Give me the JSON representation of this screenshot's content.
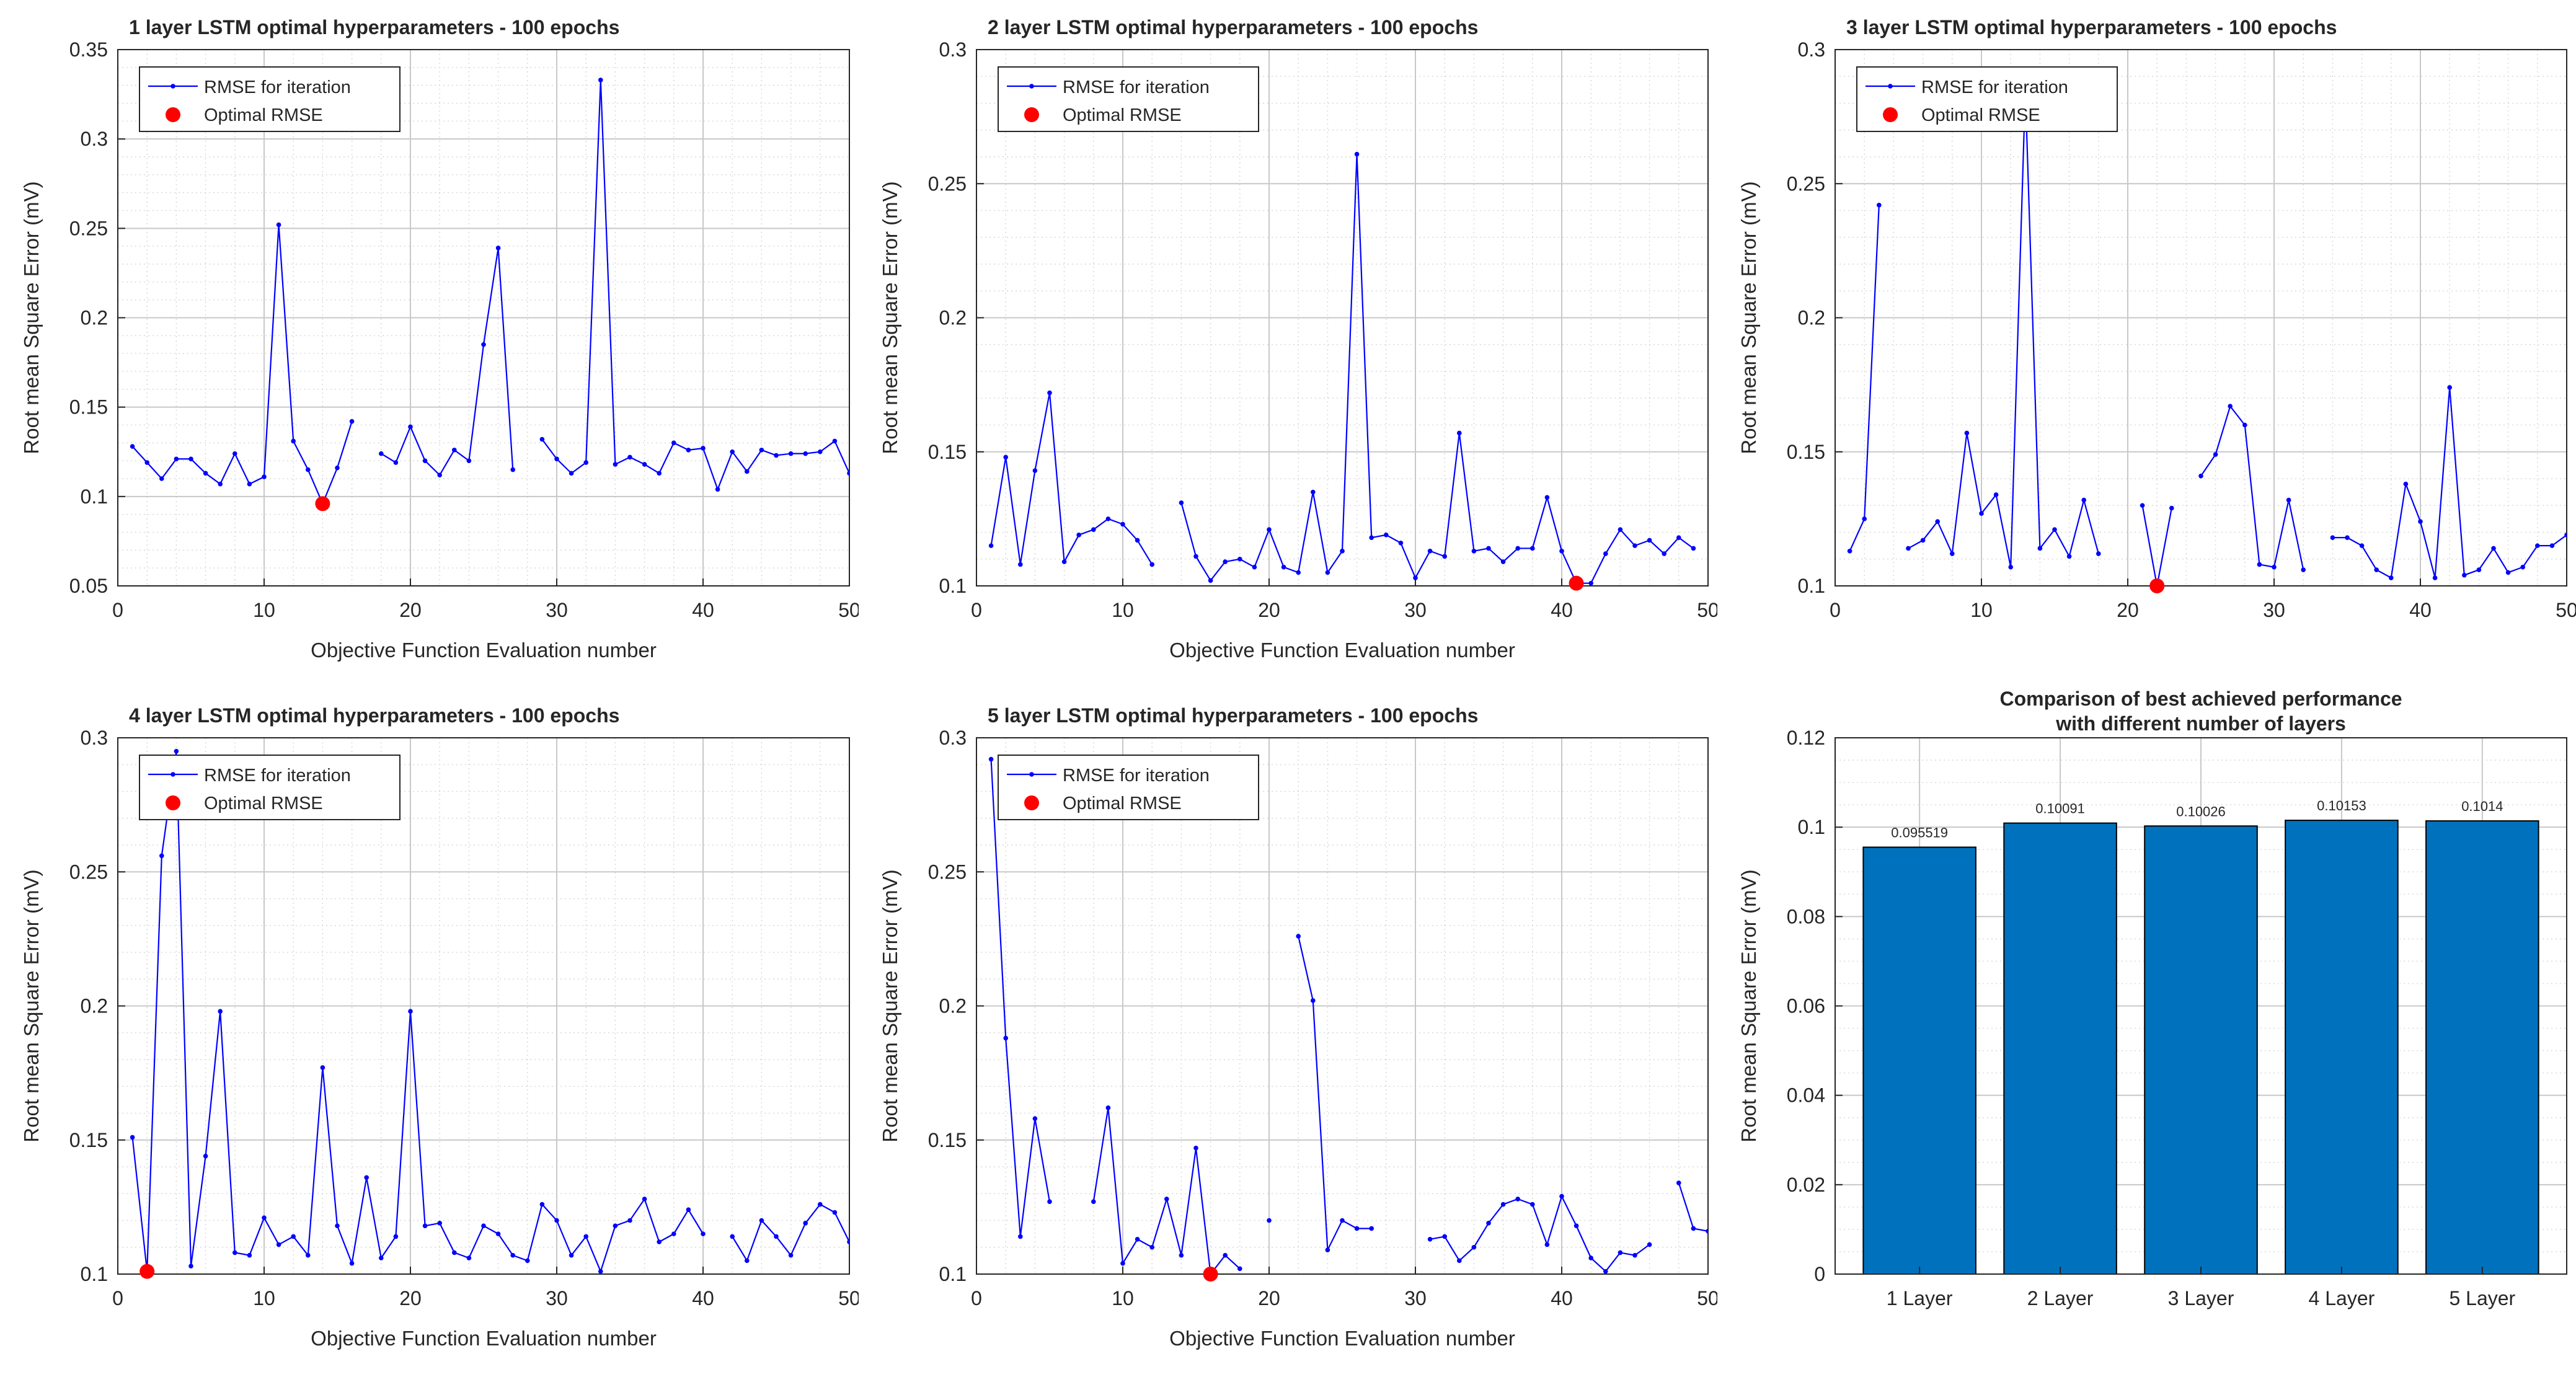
{
  "chart_data": [
    {
      "type": "line",
      "title": "1 layer LSTM optimal hyperparameters - 100 epochs",
      "xlabel": "Objective Function Evaluation number",
      "ylabel": "Root mean Square Error (mV)",
      "xlim": [
        0,
        50
      ],
      "ylim": [
        0.05,
        0.35
      ],
      "xticks": [
        0,
        10,
        20,
        30,
        40,
        50
      ],
      "xtick_labels": [
        "0",
        "10",
        "20",
        "30",
        "40",
        "50"
      ],
      "yticks": [
        0.05,
        0.1,
        0.15,
        0.2,
        0.25,
        0.3,
        0.35
      ],
      "ytick_labels": [
        "0.05",
        "0.1",
        "0.15",
        "0.2",
        "0.25",
        "0.3",
        "0.35"
      ],
      "grid": true,
      "legend": [
        "RMSE for iteration",
        "Optimal RMSE"
      ],
      "series": [
        {
          "name": "RMSE for iteration",
          "color": "#0000FF",
          "x": [
            1,
            2,
            3,
            4,
            5,
            6,
            7,
            8,
            9,
            10,
            11,
            12,
            13,
            14,
            15,
            16,
            17,
            18,
            19,
            20,
            21,
            22,
            23,
            24,
            25,
            26,
            27,
            28,
            29,
            30,
            31,
            32,
            33,
            34,
            35,
            36,
            37,
            38,
            39,
            40,
            41,
            42,
            43,
            44,
            45,
            46,
            47,
            48,
            49,
            50
          ],
          "y": [
            0.128,
            0.119,
            0.11,
            0.121,
            0.121,
            0.113,
            0.107,
            0.124,
            0.107,
            0.111,
            0.252,
            0.131,
            0.115,
            0.096,
            0.116,
            0.142,
            null,
            0.124,
            0.119,
            0.139,
            0.12,
            0.112,
            0.126,
            0.12,
            0.185,
            0.239,
            0.115,
            null,
            0.132,
            0.121,
            0.113,
            0.119,
            0.333,
            0.118,
            0.122,
            0.118,
            0.113,
            0.13,
            0.126,
            0.127,
            0.104,
            0.125,
            0.114,
            0.126,
            0.123,
            0.124,
            0.124,
            0.125,
            0.131,
            0.113
          ]
        }
      ],
      "optimal": {
        "name": "Optimal RMSE",
        "color": "#FF0000",
        "x": 14,
        "y": 0.096
      }
    },
    {
      "type": "line",
      "title": "2 layer LSTM optimal hyperparameters - 100 epochs",
      "xlabel": "Objective Function Evaluation number",
      "ylabel": "Root mean Square Error (mV)",
      "xlim": [
        0,
        50
      ],
      "ylim": [
        0.1,
        0.3
      ],
      "xticks": [
        0,
        10,
        20,
        30,
        40,
        50
      ],
      "xtick_labels": [
        "0",
        "10",
        "20",
        "30",
        "40",
        "50"
      ],
      "yticks": [
        0.1,
        0.15,
        0.2,
        0.25,
        0.3
      ],
      "ytick_labels": [
        "0.1",
        "0.15",
        "0.2",
        "0.25",
        "0.3"
      ],
      "grid": true,
      "legend": [
        "RMSE for iteration",
        "Optimal RMSE"
      ],
      "series": [
        {
          "name": "RMSE for iteration",
          "color": "#0000FF",
          "x": [
            1,
            2,
            3,
            4,
            5,
            6,
            7,
            8,
            9,
            10,
            11,
            12,
            13,
            14,
            15,
            16,
            17,
            18,
            19,
            20,
            21,
            22,
            23,
            24,
            25,
            26,
            27,
            28,
            29,
            30,
            31,
            32,
            33,
            34,
            35,
            36,
            37,
            38,
            39,
            40,
            41,
            42,
            43,
            44,
            45,
            46,
            47,
            48,
            49
          ],
          "y": [
            0.115,
            0.148,
            0.108,
            0.143,
            0.172,
            0.109,
            0.119,
            0.121,
            0.125,
            0.123,
            0.117,
            0.108,
            null,
            0.131,
            0.111,
            0.102,
            0.109,
            0.11,
            0.107,
            0.121,
            0.107,
            0.105,
            0.135,
            0.105,
            0.113,
            0.261,
            0.118,
            0.119,
            0.116,
            0.103,
            0.113,
            0.111,
            0.157,
            0.113,
            0.114,
            0.109,
            0.114,
            0.114,
            0.133,
            0.113,
            0.101,
            0.101,
            0.112,
            0.121,
            0.115,
            0.117,
            0.112,
            0.118,
            0.114
          ]
        }
      ],
      "optimal": {
        "name": "Optimal RMSE",
        "color": "#FF0000",
        "x": 41,
        "y": 0.101
      }
    },
    {
      "type": "line",
      "title": "3 layer LSTM optimal hyperparameters - 100 epochs",
      "xlabel": "",
      "ylabel": "Root mean Square Error (mV)",
      "xlim": [
        0,
        50
      ],
      "ylim": [
        0.1,
        0.3
      ],
      "xticks": [
        0,
        10,
        20,
        30,
        40,
        50
      ],
      "xtick_labels": [
        "0",
        "10",
        "20",
        "30",
        "40",
        "50"
      ],
      "yticks": [
        0.1,
        0.15,
        0.2,
        0.25,
        0.3
      ],
      "ytick_labels": [
        "0.1",
        "0.15",
        "0.2",
        "0.25",
        "0.3"
      ],
      "grid": true,
      "legend": [
        "RMSE for iteration",
        "Optimal RMSE"
      ],
      "series": [
        {
          "name": "RMSE for iteration",
          "color": "#0000FF",
          "x": [
            1,
            2,
            3,
            4,
            5,
            6,
            7,
            8,
            9,
            10,
            11,
            12,
            13,
            14,
            15,
            16,
            17,
            18,
            19,
            20,
            21,
            22,
            23,
            24,
            25,
            26,
            27,
            28,
            29,
            30,
            31,
            32,
            33,
            34,
            35,
            36,
            37,
            38,
            39,
            40,
            41,
            42,
            43,
            44,
            45,
            46,
            47,
            48,
            49,
            50
          ],
          "y": [
            0.113,
            0.125,
            0.242,
            null,
            0.114,
            0.117,
            0.124,
            0.112,
            0.157,
            0.127,
            0.134,
            0.107,
            0.285,
            0.114,
            0.121,
            0.111,
            0.132,
            0.112,
            null,
            null,
            0.13,
            0.1,
            0.129,
            null,
            0.141,
            0.149,
            0.167,
            0.16,
            0.108,
            0.107,
            0.132,
            0.106,
            null,
            0.118,
            0.118,
            0.115,
            0.106,
            0.103,
            0.138,
            0.124,
            0.103,
            0.174,
            0.104,
            0.106,
            0.114,
            0.105,
            0.107,
            0.115,
            0.115,
            0.119
          ]
        }
      ],
      "optimal": {
        "name": "Optimal RMSE",
        "color": "#FF0000",
        "x": 22,
        "y": 0.1
      }
    },
    {
      "type": "line",
      "title": "4 layer LSTM optimal hyperparameters - 100 epochs",
      "xlabel": "Objective Function Evaluation number",
      "ylabel": "Root mean Square Error (mV)",
      "xlim": [
        0,
        50
      ],
      "ylim": [
        0.1,
        0.3
      ],
      "xticks": [
        0,
        10,
        20,
        30,
        40,
        50
      ],
      "xtick_labels": [
        "0",
        "10",
        "20",
        "30",
        "40",
        "50"
      ],
      "yticks": [
        0.1,
        0.15,
        0.2,
        0.25,
        0.3
      ],
      "ytick_labels": [
        "0.1",
        "0.15",
        "0.2",
        "0.25",
        "0.3"
      ],
      "grid": true,
      "legend": [
        "RMSE for iteration",
        "Optimal RMSE"
      ],
      "series": [
        {
          "name": "RMSE for iteration",
          "color": "#0000FF",
          "x": [
            1,
            2,
            3,
            4,
            5,
            6,
            7,
            8,
            9,
            10,
            11,
            12,
            13,
            14,
            15,
            16,
            17,
            18,
            19,
            20,
            21,
            22,
            23,
            24,
            25,
            26,
            27,
            28,
            29,
            30,
            31,
            32,
            33,
            34,
            35,
            36,
            37,
            38,
            39,
            40,
            41,
            42,
            43,
            44,
            45,
            46,
            47,
            48,
            49,
            50
          ],
          "y": [
            0.151,
            0.101,
            0.256,
            0.295,
            0.103,
            0.144,
            0.198,
            0.108,
            0.107,
            0.121,
            0.111,
            0.114,
            0.107,
            0.177,
            0.118,
            0.104,
            0.136,
            0.106,
            0.114,
            0.198,
            0.118,
            0.119,
            0.108,
            0.106,
            0.118,
            0.115,
            0.107,
            0.105,
            0.126,
            0.12,
            0.107,
            0.114,
            0.101,
            0.118,
            0.12,
            0.128,
            0.112,
            0.115,
            0.124,
            0.115,
            null,
            0.114,
            0.105,
            0.12,
            0.114,
            0.107,
            0.119,
            0.126,
            0.123,
            0.112
          ]
        }
      ],
      "optimal": {
        "name": "Optimal RMSE",
        "color": "#FF0000",
        "x": 2,
        "y": 0.101
      }
    },
    {
      "type": "line",
      "title": "5 layer LSTM optimal hyperparameters - 100 epochs",
      "xlabel": "Objective Function Evaluation number",
      "ylabel": "Root mean Square Error (mV)",
      "xlim": [
        0,
        50
      ],
      "ylim": [
        0.1,
        0.3
      ],
      "xticks": [
        0,
        10,
        20,
        30,
        40,
        50
      ],
      "xtick_labels": [
        "0",
        "10",
        "20",
        "30",
        "40",
        "50"
      ],
      "yticks": [
        0.1,
        0.15,
        0.2,
        0.25,
        0.3
      ],
      "ytick_labels": [
        "0.1",
        "0.15",
        "0.2",
        "0.25",
        "0.3"
      ],
      "grid": true,
      "legend": [
        "RMSE for iteration",
        "Optimal RMSE"
      ],
      "series": [
        {
          "name": "RMSE for iteration",
          "color": "#0000FF",
          "x": [
            1,
            2,
            3,
            4,
            5,
            6,
            7,
            8,
            9,
            10,
            11,
            12,
            13,
            14,
            15,
            16,
            17,
            18,
            19,
            20,
            21,
            22,
            23,
            24,
            25,
            26,
            27,
            28,
            29,
            30,
            31,
            32,
            33,
            34,
            35,
            36,
            37,
            38,
            39,
            40,
            41,
            42,
            43,
            44,
            45,
            46,
            47,
            48,
            49,
            50
          ],
          "y": [
            0.292,
            0.188,
            0.114,
            0.158,
            0.127,
            null,
            null,
            0.127,
            0.162,
            0.104,
            0.113,
            0.11,
            0.128,
            0.107,
            0.147,
            0.1,
            0.107,
            0.102,
            null,
            0.12,
            null,
            0.226,
            0.202,
            0.109,
            0.12,
            0.117,
            0.117,
            null,
            null,
            null,
            0.113,
            0.114,
            0.105,
            0.11,
            0.119,
            0.126,
            0.128,
            0.126,
            0.111,
            0.129,
            0.118,
            0.106,
            0.101,
            0.108,
            0.107,
            0.111,
            null,
            0.134,
            0.117,
            0.116
          ]
        }
      ],
      "optimal": {
        "name": "Optimal RMSE",
        "color": "#FF0000",
        "x": 16,
        "y": 0.1
      }
    },
    {
      "type": "bar",
      "title": "Comparison of best achieved performance",
      "subtitle": "with different number of layers",
      "xlabel": "",
      "ylabel": "Root mean Square Error (mV)",
      "categories": [
        "1 Layer",
        "2 Layer",
        "3 Layer",
        "4 Layer",
        "5 Layer"
      ],
      "values": [
        0.095519,
        0.10091,
        0.10026,
        0.10153,
        0.1014
      ],
      "data_labels": [
        "0.095519",
        "0.10091",
        "0.10026",
        "0.10153",
        "0.1014"
      ],
      "ylim": [
        0,
        0.12
      ],
      "yticks": [
        0,
        0.02,
        0.04,
        0.06,
        0.08,
        0.1,
        0.12
      ],
      "ytick_labels": [
        "0",
        "0.02",
        "0.04",
        "0.06",
        "0.08",
        "0.1",
        "0.12"
      ],
      "bar_color": "#0072BD",
      "grid": true
    }
  ]
}
